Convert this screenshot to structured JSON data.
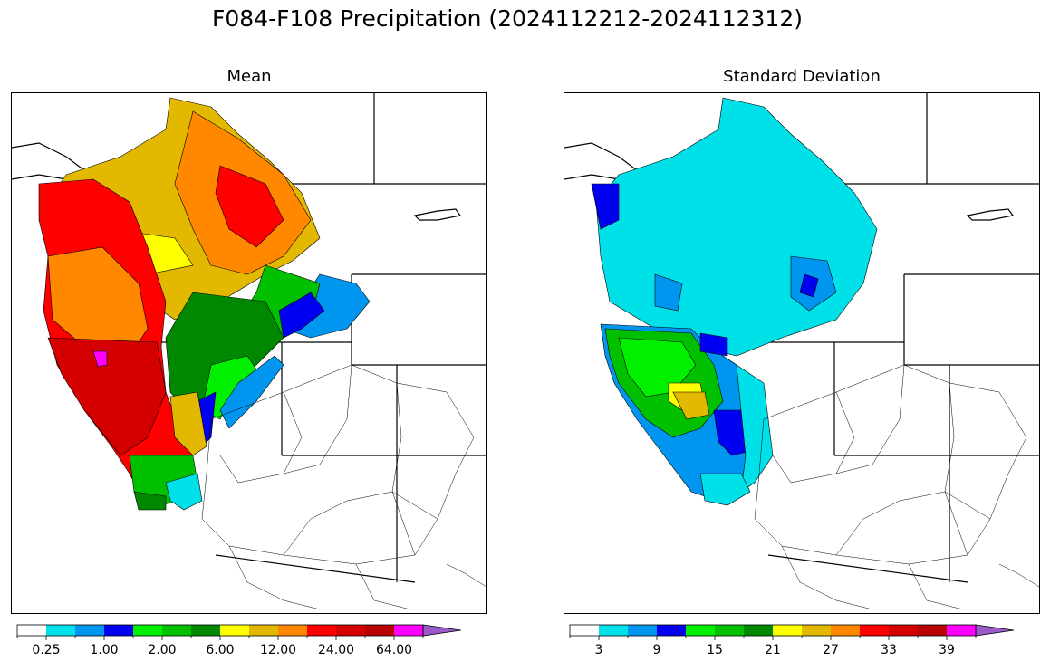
{
  "title": "F084-F108 Precipitation (2024112212-2024112312)",
  "panels": [
    {
      "id": "mean",
      "title": "Mean",
      "colorbar": {
        "colors": [
          "#ffffff",
          "#00e0e8",
          "#0096f0",
          "#0000f0",
          "#00f000",
          "#00c000",
          "#008800",
          "#ffff00",
          "#e2b800",
          "#ff8800",
          "#ff0000",
          "#d40000",
          "#b80000",
          "#ff00ff",
          "#9b59c9"
        ],
        "tick_labels": [
          "0.25",
          "1.00",
          "2.00",
          "6.00",
          "12.00",
          "24.00",
          "64.00"
        ],
        "extend": "max"
      }
    },
    {
      "id": "stddev",
      "title": "Standard Deviation",
      "colorbar": {
        "colors": [
          "#ffffff",
          "#00e0e8",
          "#0096f0",
          "#0000f0",
          "#00f000",
          "#00c000",
          "#008800",
          "#ffff00",
          "#e2b800",
          "#ff8800",
          "#ff0000",
          "#d40000",
          "#b80000",
          "#ff00ff",
          "#9b59c9"
        ],
        "tick_labels": [
          "3",
          "9",
          "15",
          "21",
          "27",
          "33",
          "39"
        ],
        "extend": "max"
      }
    }
  ]
}
